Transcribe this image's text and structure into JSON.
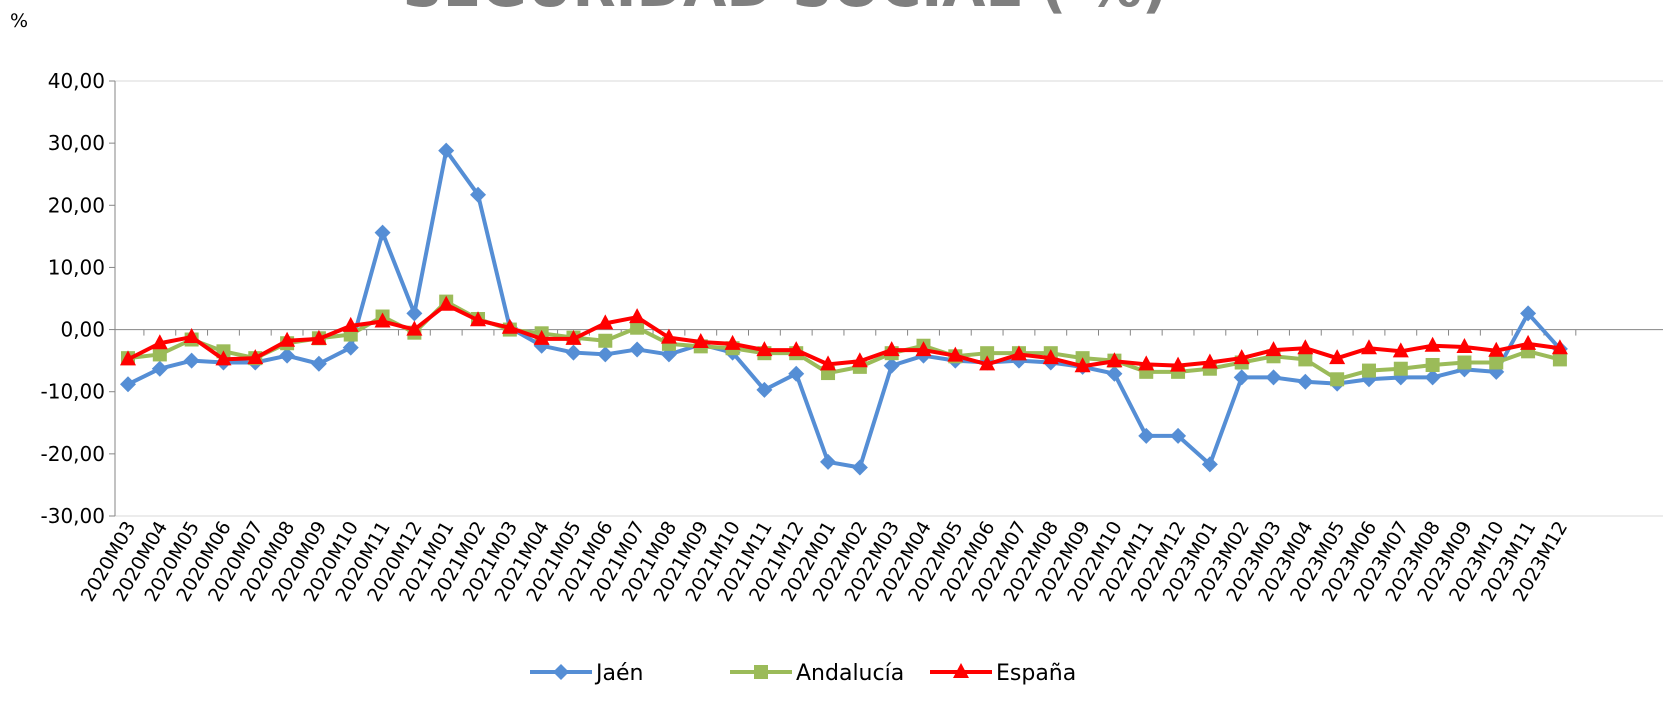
{
  "chart_data": {
    "type": "line",
    "title": "SEGURIDAD SOCIAL ( %)",
    "y_label": "%",
    "categories": [
      "2020M03",
      "2020M04",
      "2020M05",
      "2020M06",
      "2020M07",
      "2020M08",
      "2020M09",
      "2020M10",
      "2020M11",
      "2020M12",
      "2021M01",
      "2021M02",
      "2021M03",
      "2021M04",
      "2021M05",
      "2021M06",
      "2021M07",
      "2021M08",
      "2021M09",
      "2021M10",
      "2021M11",
      "2021M12",
      "2022M01",
      "2022M02",
      "2022M03",
      "2022M04",
      "2022M05",
      "2022M06",
      "2022M07",
      "2022M08",
      "2022M09",
      "2022M10",
      "2022M11",
      "2022M12",
      "2023M01",
      "2023M02",
      "2023M03",
      "2023M04",
      "2023M05",
      "2023M06",
      "2023M07",
      "2023M08",
      "2023M09",
      "2023M10",
      "2023M11",
      "2023M12"
    ],
    "series": [
      {
        "name": "Jaén",
        "color": "#558ed5",
        "marker": "diamond",
        "values": [
          -8.8,
          -6.3,
          -5.0,
          -5.3,
          -5.3,
          -4.2,
          -5.5,
          -2.9,
          15.6,
          2.6,
          28.8,
          21.7,
          0.3,
          -2.6,
          -3.7,
          -4.0,
          -3.2,
          -4.0,
          -2.4,
          -3.7,
          -9.7,
          -7.1,
          -21.3,
          -22.2,
          -5.8,
          -4.2,
          -5.0,
          -5.3,
          -5.0,
          -5.3,
          -6.0,
          -7.1,
          -17.1,
          -17.1,
          -21.7,
          -7.7,
          -7.7,
          -8.4,
          -8.7,
          -8.0,
          -7.7,
          -7.7,
          -6.4,
          -6.8,
          2.6,
          -3.1
        ]
      },
      {
        "name": "Andalucía",
        "color": "#9bbb59",
        "marker": "square",
        "values": [
          -4.6,
          -4.0,
          -1.6,
          -3.5,
          -4.6,
          -2.2,
          -1.4,
          -0.8,
          2.1,
          -0.5,
          4.5,
          1.7,
          0.0,
          -0.6,
          -1.3,
          -1.8,
          0.3,
          -2.3,
          -2.7,
          -3.0,
          -3.8,
          -3.8,
          -7.0,
          -6.0,
          -3.8,
          -2.6,
          -4.3,
          -3.8,
          -3.8,
          -3.8,
          -4.6,
          -5.0,
          -6.8,
          -6.8,
          -6.3,
          -5.3,
          -4.3,
          -4.8,
          -8.0,
          -6.6,
          -6.3,
          -5.7,
          -5.3,
          -5.3,
          -3.5,
          -4.8
        ]
      },
      {
        "name": "España",
        "color": "#ff0000",
        "marker": "triangle",
        "values": [
          -4.8,
          -2.2,
          -1.2,
          -4.8,
          -4.6,
          -1.8,
          -1.5,
          0.6,
          1.3,
          0.0,
          4.0,
          1.5,
          0.3,
          -1.5,
          -1.5,
          1.0,
          2.0,
          -1.3,
          -2.0,
          -2.3,
          -3.3,
          -3.3,
          -5.6,
          -5.1,
          -3.3,
          -3.3,
          -4.2,
          -5.6,
          -4.0,
          -4.6,
          -5.9,
          -5.1,
          -5.6,
          -5.8,
          -5.3,
          -4.6,
          -3.3,
          -3.0,
          -4.6,
          -3.0,
          -3.5,
          -2.6,
          -2.8,
          -3.4,
          -2.3,
          -3.0
        ]
      }
    ],
    "ylim": [
      -30,
      40
    ],
    "yticks": [
      {
        "value": -30,
        "label": "-30,00"
      },
      {
        "value": -20,
        "label": "-20,00"
      },
      {
        "value": -10,
        "label": "-10,00"
      },
      {
        "value": 0,
        "label": "0,00"
      },
      {
        "value": 10,
        "label": "10,00"
      },
      {
        "value": 20,
        "label": "20,00"
      },
      {
        "value": 30,
        "label": "30,00"
      },
      {
        "value": 40,
        "label": "40,00"
      }
    ],
    "legend": "bottom"
  }
}
